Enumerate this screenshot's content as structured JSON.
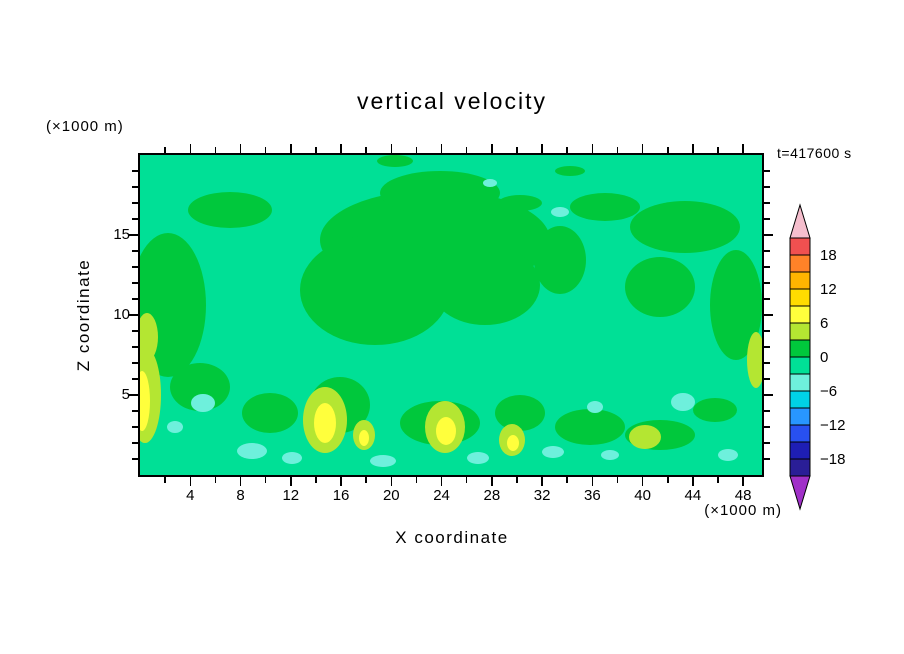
{
  "chart_data": {
    "type": "heatmap",
    "title": "vertical velocity",
    "xlabel": "X coordinate",
    "ylabel": "Z coordinate",
    "x_units": "(×1000 m)",
    "y_units": "(×1000 m)",
    "time_annotation": "t=417600 s",
    "x_ticks": [
      4,
      8,
      12,
      16,
      20,
      24,
      28,
      32,
      36,
      40,
      44,
      48
    ],
    "y_ticks": [
      5,
      10,
      15
    ],
    "x_minor_step": 2,
    "y_minor_step": 1,
    "xlim": [
      0,
      49.5
    ],
    "ylim": [
      0,
      20
    ],
    "grid": false,
    "legend_position": "right",
    "contour_interval": 3,
    "labeled_levels": [
      18,
      12,
      6,
      0,
      -6,
      -12,
      -18
    ],
    "field_summary": {
      "dominant_bin": "-3 to 0 (spring green background)",
      "features": [
        "large green (0 to 3) region across upper-middle of domain",
        "green patches along left edge, right side and near bottom",
        "yellow (6 to 12) near-surface cores at x ≈ 1, 15, 18, 24, 29 (×1000 m)",
        "scattered pale-cyan (-6 to -3) patches mostly in lower half",
        "yellow-green sliver on right boundary near z ≈ 6-8"
      ]
    },
    "field_palette": {
      "base_spring_green": "#00E096",
      "green": "#00C83C",
      "yellow_green": "#B4E632",
      "yellow": "#FFFF3C",
      "pale_cyan": "#6EF0DC"
    }
  },
  "colorbar": {
    "arrow_top_color": "#F5BECD",
    "arrow_bottom_color": "#A030C8",
    "segment_colors_top_to_bottom": [
      "#F05050",
      "#FF8228",
      "#FFB400",
      "#FFDC00",
      "#FFFF3C",
      "#B4E632",
      "#00C83C",
      "#00E096",
      "#6EF0DC",
      "#00D2E6",
      "#2896FF",
      "#2850F0",
      "#1E1EB4",
      "#2A1E96"
    ],
    "boundary_labels_top_to_bottom": [
      "18",
      "12",
      "6",
      "0",
      "−6",
      "−12",
      "−18"
    ]
  }
}
